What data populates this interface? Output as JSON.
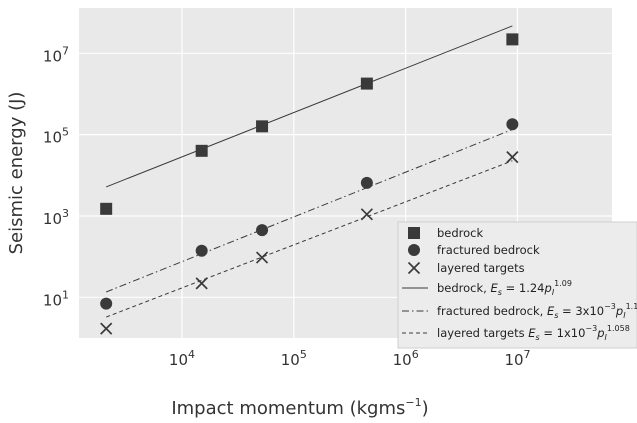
{
  "chart_data": {
    "type": "scatter",
    "title": "",
    "xlabel": "Impact momentum (kgms−1)",
    "xlabel_parts": {
      "main": "Impact momentum (kgms",
      "sup": "−1",
      "close": ")"
    },
    "ylabel": "Seismic energy (J)",
    "xscale": "log",
    "yscale": "log",
    "xlim": [
      1200,
      70000000
    ],
    "ylim": [
      1.0,
      130000000
    ],
    "grid": true,
    "legend_position": "bottom-right",
    "x_ticks": [
      {
        "base": "10",
        "exp": "4",
        "value": 10000
      },
      {
        "base": "10",
        "exp": "5",
        "value": 100000
      },
      {
        "base": "10",
        "exp": "6",
        "value": 1000000
      },
      {
        "base": "10",
        "exp": "7",
        "value": 10000000
      }
    ],
    "y_ticks": [
      {
        "base": "10",
        "exp": "1",
        "value": 10
      },
      {
        "base": "10",
        "exp": "3",
        "value": 1000
      },
      {
        "base": "10",
        "exp": "5",
        "value": 100000
      },
      {
        "base": "10",
        "exp": "7",
        "value": 10000000
      }
    ],
    "series": [
      {
        "name": "bedrock",
        "marker": "square",
        "color": "#3a3a3a",
        "x": [
          2100,
          15000,
          52000,
          450000,
          9000000
        ],
        "y": [
          1500,
          40000,
          160000,
          1800000,
          22000000
        ]
      },
      {
        "name": "fractured bedrock",
        "marker": "circle",
        "color": "#3a3a3a",
        "x": [
          2100,
          15000,
          52000,
          450000,
          9000000
        ],
        "y": [
          7,
          140,
          450,
          6500,
          180000
        ]
      },
      {
        "name": "layered targets",
        "marker": "x",
        "color": "#3a3a3a",
        "x": [
          2100,
          15000,
          52000,
          450000,
          9000000
        ],
        "y": [
          1.7,
          22,
          95,
          1100,
          28000
        ]
      }
    ],
    "fits": [
      {
        "coef": 1.24,
        "exp": 1.09,
        "style": "solid",
        "x_range": [
          2100,
          9000000
        ],
        "legend": {
          "prefix": "bedrock, ",
          "formula": "1.24",
          "sup": "1.09"
        }
      },
      {
        "coef": 0.003,
        "exp": 1.1,
        "style": "dashdot",
        "x_range": [
          2100,
          9000000
        ],
        "legend": {
          "prefix": "fractured bedrock, ",
          "formula": "3x10",
          "formula_sup": "−3",
          "sup": "1.1"
        }
      },
      {
        "coef": 0.001,
        "exp": 1.058,
        "style": "dashed",
        "x_range": [
          2100,
          9000000
        ],
        "legend": {
          "prefix": "layered targets ",
          "formula": "1x10",
          "formula_sup": "−3",
          "sup": "1.058"
        }
      }
    ],
    "legend_symbols": {
      "E": "E",
      "E_sub": "s",
      "p": "p",
      "p_sub": "I"
    },
    "colors": {
      "plot_bg": "#e9e9e9",
      "grid": "#ffffff",
      "ink": "#3a3a3a",
      "legend_bg": "#ececec"
    }
  }
}
